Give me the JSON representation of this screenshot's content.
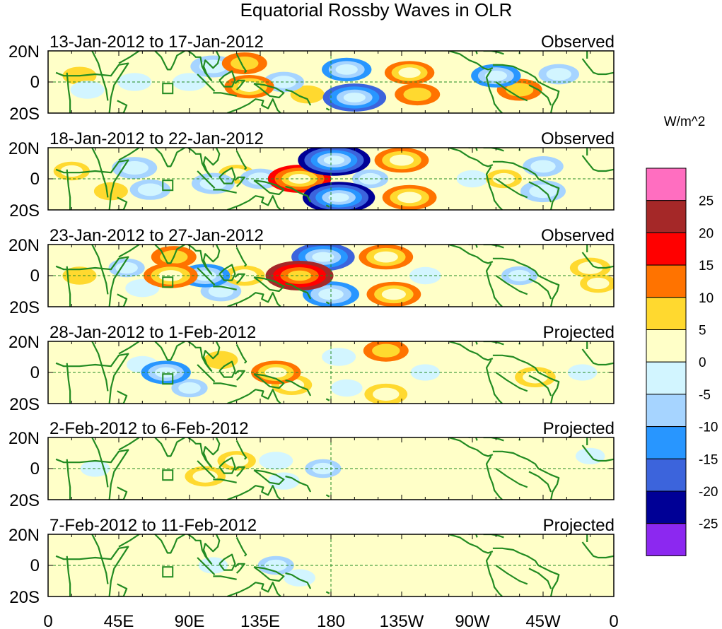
{
  "chart_data": {
    "type": "heatmap",
    "title": "Equatorial Rossby Waves in OLR",
    "colorbar": {
      "units": "W/m^2",
      "levels": [
        25,
        20,
        15,
        10,
        5,
        0,
        -5,
        -10,
        -15,
        -20,
        -25
      ],
      "colors": [
        "#ff6ec0",
        "#a52828",
        "#ff0000",
        "#ff7300",
        "#ffd92f",
        "#ffffc8",
        "#d2f5ff",
        "#a6d4ff",
        "#2896ff",
        "#3c64dc",
        "#000096",
        "#8c28f0"
      ]
    },
    "x_axis": {
      "range": [
        0,
        360
      ],
      "ticks": [
        "0",
        "45E",
        "90E",
        "135E",
        "180",
        "135W",
        "90W",
        "45W",
        "0"
      ]
    },
    "y_axis": {
      "range": [
        -20,
        20
      ],
      "ticks": [
        "20N",
        "0",
        "20S"
      ]
    },
    "panels": [
      {
        "dates": "13-Jan-2012 to 17-Jan-2012",
        "label": "Observed",
        "anomalies": [
          {
            "lon": 20,
            "lat": 4,
            "value": 5
          },
          {
            "lon": 25,
            "lat": -5,
            "value": -5
          },
          {
            "lon": 55,
            "lat": 0,
            "value": -5
          },
          {
            "lon": 90,
            "lat": 0,
            "value": -5
          },
          {
            "lon": 105,
            "lat": 10,
            "value": -10
          },
          {
            "lon": 125,
            "lat": 12,
            "value": 10
          },
          {
            "lon": 128,
            "lat": -3,
            "value": 12
          },
          {
            "lon": 150,
            "lat": 0,
            "value": -8
          },
          {
            "lon": 165,
            "lat": -8,
            "value": 5
          },
          {
            "lon": 190,
            "lat": 8,
            "value": -12
          },
          {
            "lon": 195,
            "lat": -10,
            "value": -18
          },
          {
            "lon": 230,
            "lat": 6,
            "value": 12
          },
          {
            "lon": 235,
            "lat": -8,
            "value": 10
          },
          {
            "lon": 260,
            "lat": 0,
            "value": 3
          },
          {
            "lon": 285,
            "lat": 4,
            "value": -12
          },
          {
            "lon": 300,
            "lat": -5,
            "value": 10
          },
          {
            "lon": 325,
            "lat": 5,
            "value": -8
          },
          {
            "lon": 345,
            "lat": -5,
            "value": 4
          }
        ]
      },
      {
        "dates": "18-Jan-2012 to 22-Jan-2012",
        "label": "Observed",
        "anomalies": [
          {
            "lon": 15,
            "lat": 5,
            "value": 6
          },
          {
            "lon": 40,
            "lat": -8,
            "value": 5
          },
          {
            "lon": 55,
            "lat": 7,
            "value": -10
          },
          {
            "lon": 65,
            "lat": -7,
            "value": -8
          },
          {
            "lon": 90,
            "lat": 5,
            "value": 4
          },
          {
            "lon": 105,
            "lat": -3,
            "value": -9
          },
          {
            "lon": 120,
            "lat": 3,
            "value": 6
          },
          {
            "lon": 135,
            "lat": 0,
            "value": -8
          },
          {
            "lon": 160,
            "lat": 0,
            "value": 18
          },
          {
            "lon": 182,
            "lat": 12,
            "value": -22
          },
          {
            "lon": 185,
            "lat": -12,
            "value": -22
          },
          {
            "lon": 205,
            "lat": 0,
            "value": -6
          },
          {
            "lon": 225,
            "lat": 12,
            "value": 14
          },
          {
            "lon": 230,
            "lat": -12,
            "value": 14
          },
          {
            "lon": 270,
            "lat": 0,
            "value": -4
          },
          {
            "lon": 290,
            "lat": 0,
            "value": 6
          },
          {
            "lon": 315,
            "lat": 8,
            "value": -8
          },
          {
            "lon": 315,
            "lat": -8,
            "value": -10
          },
          {
            "lon": 345,
            "lat": 0,
            "value": 4
          }
        ]
      },
      {
        "dates": "23-Jan-2012 to 27-Jan-2012",
        "label": "Observed",
        "anomalies": [
          {
            "lon": 20,
            "lat": 0,
            "value": 5
          },
          {
            "lon": 50,
            "lat": 5,
            "value": -6
          },
          {
            "lon": 60,
            "lat": -8,
            "value": -5
          },
          {
            "lon": 78,
            "lat": 0,
            "value": 14
          },
          {
            "lon": 80,
            "lat": 12,
            "value": 10
          },
          {
            "lon": 100,
            "lat": 0,
            "value": -12
          },
          {
            "lon": 110,
            "lat": -10,
            "value": -8
          },
          {
            "lon": 125,
            "lat": 0,
            "value": 8
          },
          {
            "lon": 160,
            "lat": 0,
            "value": 20
          },
          {
            "lon": 175,
            "lat": 12,
            "value": -18
          },
          {
            "lon": 180,
            "lat": -12,
            "value": -15
          },
          {
            "lon": 215,
            "lat": 12,
            "value": 14
          },
          {
            "lon": 220,
            "lat": -12,
            "value": 14
          },
          {
            "lon": 240,
            "lat": 0,
            "value": -4
          },
          {
            "lon": 300,
            "lat": 0,
            "value": -6
          },
          {
            "lon": 345,
            "lat": 5,
            "value": 8
          },
          {
            "lon": 350,
            "lat": -5,
            "value": 6
          }
        ]
      },
      {
        "dates": "28-Jan-2012 to 1-Feb-2012",
        "label": "Projected",
        "anomalies": [
          {
            "lon": 30,
            "lat": 0,
            "value": 3
          },
          {
            "lon": 60,
            "lat": 5,
            "value": -4
          },
          {
            "lon": 75,
            "lat": 0,
            "value": -12
          },
          {
            "lon": 90,
            "lat": -10,
            "value": -6
          },
          {
            "lon": 110,
            "lat": 8,
            "value": 5
          },
          {
            "lon": 145,
            "lat": 0,
            "value": 12
          },
          {
            "lon": 155,
            "lat": -8,
            "value": 8
          },
          {
            "lon": 185,
            "lat": 10,
            "value": -5
          },
          {
            "lon": 190,
            "lat": -10,
            "value": -4
          },
          {
            "lon": 215,
            "lat": 14,
            "value": 10
          },
          {
            "lon": 215,
            "lat": -14,
            "value": 9
          },
          {
            "lon": 240,
            "lat": 0,
            "value": -3
          },
          {
            "lon": 310,
            "lat": -3,
            "value": 8
          },
          {
            "lon": 340,
            "lat": 0,
            "value": -3
          }
        ]
      },
      {
        "dates": "2-Feb-2012 to 6-Feb-2012",
        "label": "Projected",
        "anomalies": [
          {
            "lon": 30,
            "lat": 0,
            "value": -3
          },
          {
            "lon": 60,
            "lat": 5,
            "value": 3
          },
          {
            "lon": 100,
            "lat": -5,
            "value": 8
          },
          {
            "lon": 120,
            "lat": 5,
            "value": 7
          },
          {
            "lon": 145,
            "lat": 5,
            "value": -5
          },
          {
            "lon": 150,
            "lat": -8,
            "value": -4
          },
          {
            "lon": 175,
            "lat": 0,
            "value": -6
          },
          {
            "lon": 230,
            "lat": 0,
            "value": 3
          },
          {
            "lon": 300,
            "lat": 0,
            "value": 2
          },
          {
            "lon": 345,
            "lat": 8,
            "value": -3
          }
        ]
      },
      {
        "dates": "7-Feb-2012 to 11-Feb-2012",
        "label": "Projected",
        "anomalies": [
          {
            "lon": 40,
            "lat": 0,
            "value": 2
          },
          {
            "lon": 75,
            "lat": 5,
            "value": 4
          },
          {
            "lon": 105,
            "lat": 0,
            "value": -3
          },
          {
            "lon": 145,
            "lat": 0,
            "value": -6
          },
          {
            "lon": 160,
            "lat": -8,
            "value": -4
          },
          {
            "lon": 215,
            "lat": 0,
            "value": 3
          },
          {
            "lon": 300,
            "lat": 0,
            "value": 2
          }
        ]
      }
    ]
  }
}
